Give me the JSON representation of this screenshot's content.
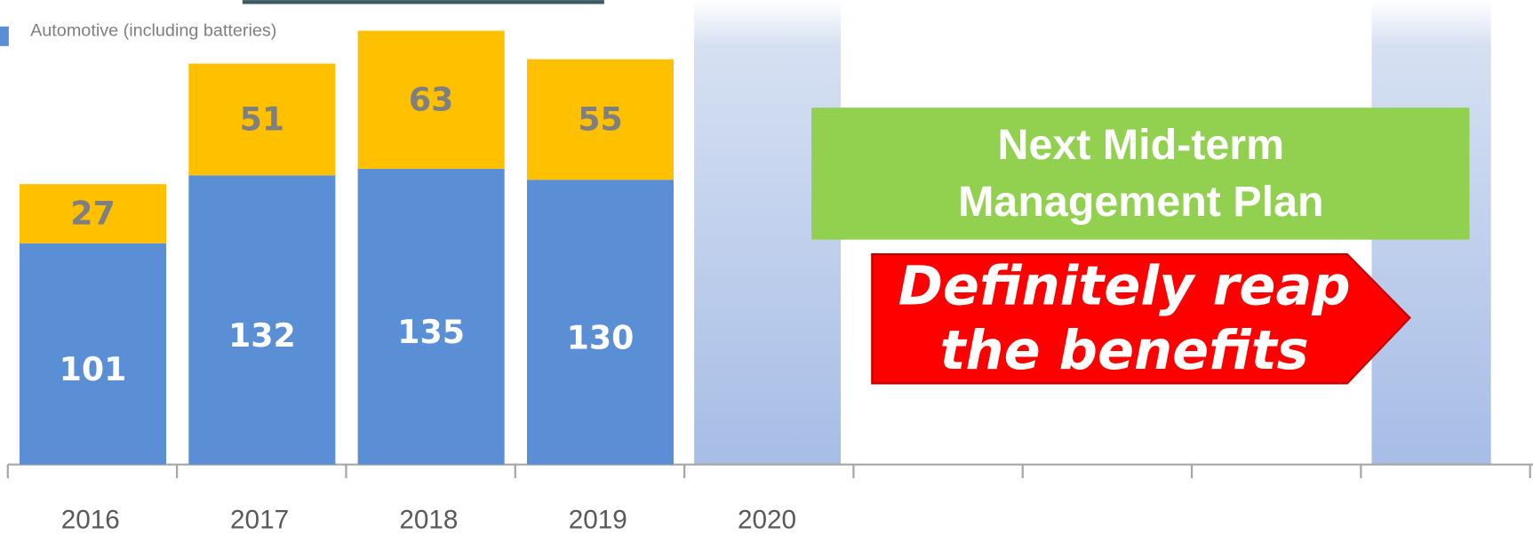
{
  "chart_data": {
    "type": "stacked-bar",
    "categories": [
      "2016",
      "2017",
      "2018",
      "2019",
      "2020",
      null,
      null,
      null,
      null
    ],
    "series": [
      {
        "name": "Automotive (including batteries)",
        "color": "#5a8fd6",
        "values": [
          101,
          132,
          135,
          130,
          null,
          null,
          null,
          null,
          null
        ]
      },
      {
        "color": "#ffc000",
        "values": [
          27,
          51,
          63,
          55,
          null,
          null,
          null,
          null,
          null
        ]
      }
    ],
    "ylim": [
      0,
      212
    ],
    "plan_label": [
      "Next Mid-term",
      "Management Plan"
    ],
    "slogan": [
      "Definitely reap",
      "the benefits"
    ]
  }
}
